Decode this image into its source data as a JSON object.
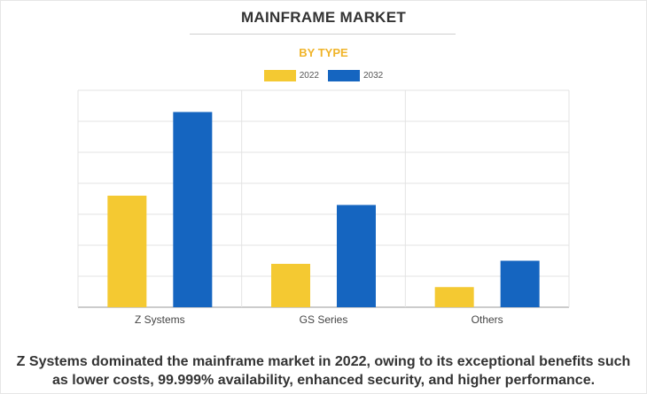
{
  "chart_data": {
    "type": "bar",
    "title": "MAINFRAME MARKET",
    "subtitle": "BY TYPE",
    "categories": [
      "Z Systems",
      "GS Series",
      "Others"
    ],
    "series": [
      {
        "name": "2022",
        "color": "#f4c932",
        "values": [
          36,
          14,
          6.5
        ]
      },
      {
        "name": "2032",
        "color": "#1565c0",
        "values": [
          63,
          33,
          15
        ]
      }
    ],
    "ylim": [
      0,
      70
    ],
    "grid": true,
    "legend_position": "top-center",
    "xlabel": "",
    "ylabel": ""
  },
  "caption": "Z Systems dominated the mainframe market in 2022, owing to its exceptional benefits such as lower costs, 99.999% availability, enhanced security, and higher performance."
}
